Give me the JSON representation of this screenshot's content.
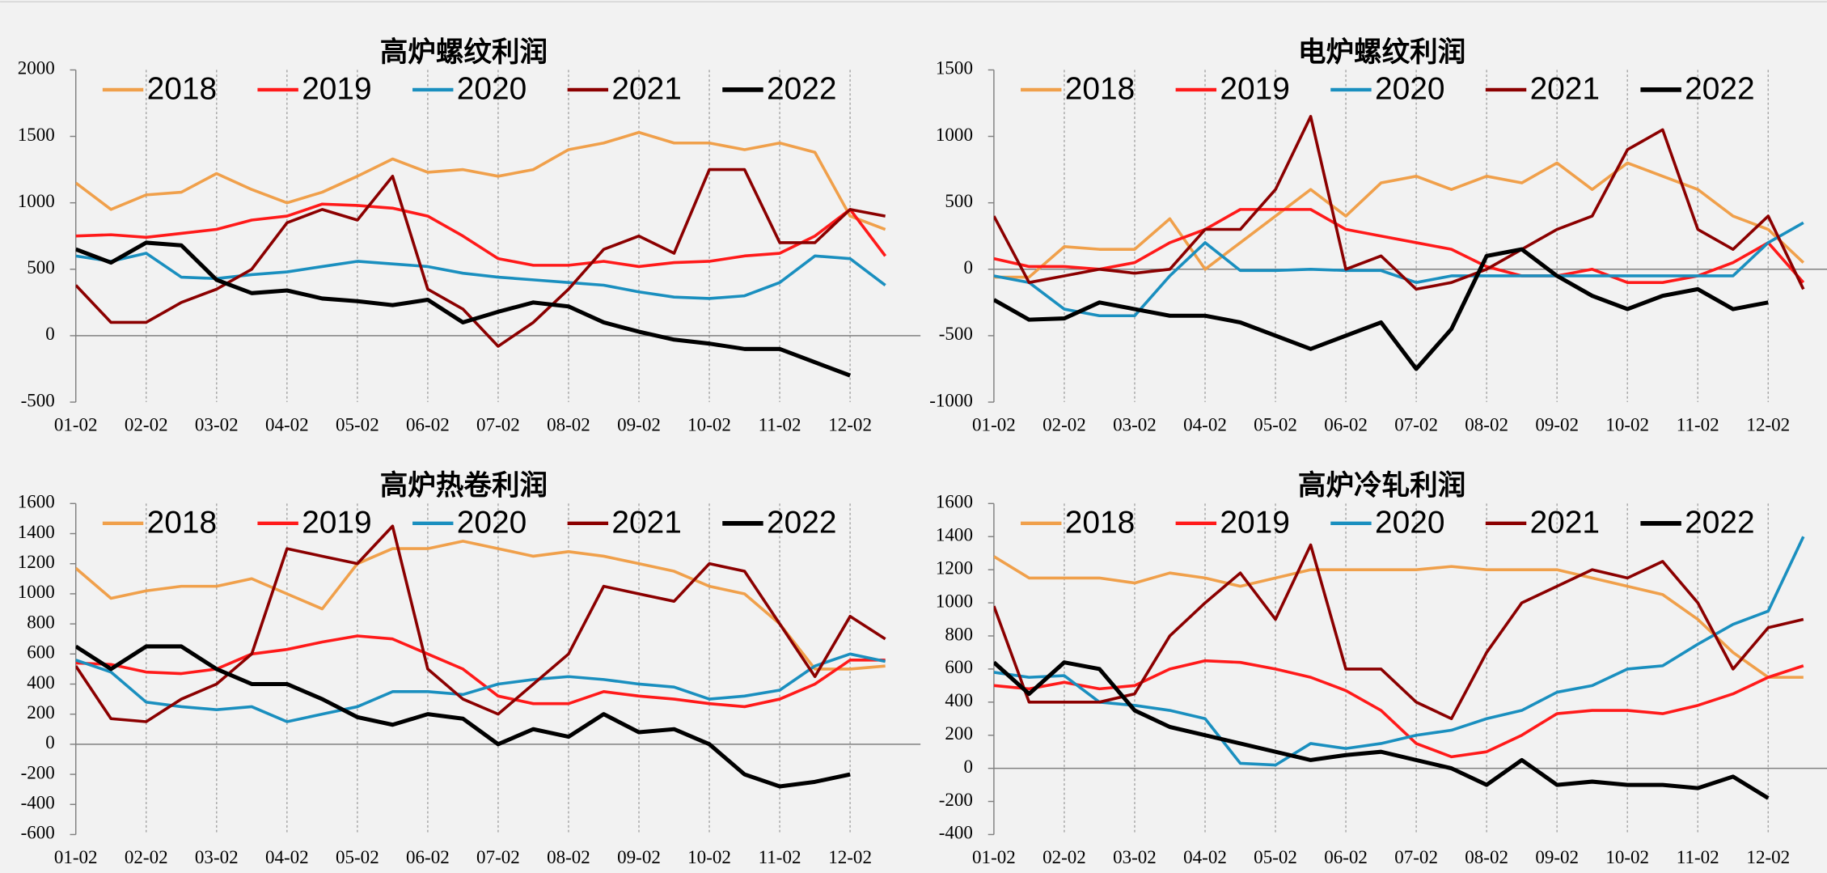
{
  "chart_data": [
    {
      "type": "line",
      "title": "高炉螺纹利润",
      "legend": "top",
      "grid": "x",
      "categories": [
        "01-02",
        null,
        "02-02",
        null,
        "03-02",
        null,
        "04-02",
        null,
        "05-02",
        null,
        "06-02",
        null,
        "07-02",
        null,
        "08-02",
        null,
        "09-02",
        null,
        "10-02",
        null,
        "11-02",
        null,
        "12-02",
        null
      ],
      "ylim": [
        -500,
        2000
      ],
      "yticks": [
        -500,
        0,
        500,
        1000,
        1500,
        2000
      ],
      "series": [
        {
          "name": "2018",
          "color": "#f0a04b",
          "values": [
            1150,
            950,
            1060,
            1080,
            1220,
            1100,
            1000,
            1080,
            1200,
            1330,
            1230,
            1250,
            1200,
            1250,
            1400,
            1450,
            1530,
            1450,
            1450,
            1400,
            1450,
            1380,
            900,
            800
          ]
        },
        {
          "name": "2019",
          "color": "#ff1a1a",
          "values": [
            750,
            760,
            740,
            770,
            800,
            870,
            900,
            990,
            980,
            960,
            900,
            750,
            580,
            530,
            530,
            560,
            520,
            550,
            560,
            600,
            620,
            750,
            950,
            600
          ]
        },
        {
          "name": "2020",
          "color": "#1a8fbf",
          "values": [
            600,
            560,
            620,
            440,
            430,
            460,
            480,
            520,
            560,
            540,
            520,
            470,
            440,
            420,
            400,
            380,
            330,
            290,
            280,
            300,
            400,
            600,
            580,
            380
          ]
        },
        {
          "name": "2021",
          "color": "#8b0000",
          "values": [
            380,
            100,
            100,
            250,
            350,
            500,
            850,
            950,
            870,
            1200,
            350,
            200,
            -80,
            100,
            350,
            650,
            750,
            620,
            1250,
            1250,
            700,
            700,
            950,
            900
          ]
        },
        {
          "name": "2022",
          "color": "#000000",
          "values": [
            650,
            550,
            700,
            680,
            420,
            320,
            340,
            280,
            260,
            230,
            270,
            100,
            180,
            250,
            220,
            100,
            30,
            -30,
            -60,
            -100,
            -100,
            -200,
            -300,
            null
          ]
        }
      ]
    },
    {
      "type": "line",
      "title": "电炉螺纹利润",
      "legend": "top",
      "grid": "x",
      "categories": [
        "01-02",
        null,
        "02-02",
        null,
        "03-02",
        null,
        "04-02",
        null,
        "05-02",
        null,
        "06-02",
        null,
        "07-02",
        null,
        "08-02",
        null,
        "09-02",
        null,
        "10-02",
        null,
        "11-02",
        null,
        "12-02",
        null
      ],
      "ylim": [
        -1000,
        1500
      ],
      "yticks": [
        -1000,
        -500,
        0,
        500,
        1000,
        1500
      ],
      "series": [
        {
          "name": "2018",
          "color": "#f0a04b",
          "values": [
            -60,
            -60,
            170,
            150,
            150,
            380,
            0,
            200,
            400,
            600,
            400,
            650,
            700,
            600,
            700,
            650,
            800,
            600,
            800,
            700,
            600,
            400,
            300,
            50
          ]
        },
        {
          "name": "2019",
          "color": "#ff1a1a",
          "values": [
            80,
            20,
            20,
            0,
            50,
            200,
            300,
            450,
            450,
            450,
            300,
            250,
            200,
            150,
            20,
            -50,
            -50,
            0,
            -100,
            -100,
            -50,
            50,
            200,
            -100
          ]
        },
        {
          "name": "2020",
          "color": "#1a8fbf",
          "values": [
            -50,
            -100,
            -300,
            -350,
            -350,
            -50,
            200,
            -10,
            -10,
            0,
            -10,
            -10,
            -100,
            -50,
            -50,
            -50,
            -50,
            -50,
            -50,
            -50,
            -50,
            -50,
            200,
            350
          ]
        },
        {
          "name": "2021",
          "color": "#8b0000",
          "values": [
            400,
            -100,
            -50,
            0,
            -30,
            0,
            300,
            300,
            600,
            1150,
            0,
            100,
            -150,
            -100,
            0,
            150,
            300,
            400,
            900,
            1050,
            300,
            150,
            400,
            -150
          ]
        },
        {
          "name": "2022",
          "color": "#000000",
          "values": [
            -230,
            -380,
            -370,
            -250,
            -300,
            -350,
            -350,
            -400,
            -500,
            -600,
            -500,
            -400,
            -750,
            -450,
            100,
            150,
            -50,
            -200,
            -300,
            -200,
            -150,
            -300,
            -250,
            null
          ]
        }
      ]
    },
    {
      "type": "line",
      "title": "高炉热卷利润",
      "legend": "top",
      "grid": "x",
      "categories": [
        "01-02",
        null,
        "02-02",
        null,
        "03-02",
        null,
        "04-02",
        null,
        "05-02",
        null,
        "06-02",
        null,
        "07-02",
        null,
        "08-02",
        null,
        "09-02",
        null,
        "10-02",
        null,
        "11-02",
        null,
        "12-02",
        null
      ],
      "ylim": [
        -600,
        1600
      ],
      "yticks": [
        -600,
        -400,
        -200,
        0,
        200,
        400,
        600,
        800,
        1000,
        1200,
        1400,
        1600
      ],
      "series": [
        {
          "name": "2018",
          "color": "#f0a04b",
          "values": [
            1170,
            970,
            1020,
            1050,
            1050,
            1100,
            1000,
            900,
            1200,
            1300,
            1300,
            1350,
            1300,
            1250,
            1280,
            1250,
            1200,
            1150,
            1050,
            1000,
            800,
            500,
            500,
            520
          ]
        },
        {
          "name": "2019",
          "color": "#ff1a1a",
          "values": [
            540,
            530,
            480,
            470,
            500,
            600,
            630,
            680,
            720,
            700,
            600,
            500,
            320,
            270,
            270,
            350,
            320,
            300,
            270,
            250,
            300,
            400,
            560,
            560
          ]
        },
        {
          "name": "2020",
          "color": "#1a8fbf",
          "values": [
            560,
            480,
            280,
            250,
            230,
            250,
            150,
            200,
            250,
            350,
            350,
            330,
            400,
            430,
            450,
            430,
            400,
            380,
            300,
            320,
            360,
            520,
            600,
            550
          ]
        },
        {
          "name": "2021",
          "color": "#8b0000",
          "values": [
            520,
            170,
            150,
            300,
            400,
            600,
            1300,
            1250,
            1200,
            1450,
            500,
            300,
            200,
            400,
            600,
            1050,
            1000,
            950,
            1200,
            1150,
            800,
            450,
            850,
            700
          ]
        },
        {
          "name": "2022",
          "color": "#000000",
          "values": [
            650,
            500,
            650,
            650,
            500,
            400,
            400,
            300,
            180,
            130,
            200,
            170,
            0,
            100,
            50,
            200,
            80,
            100,
            0,
            -200,
            -280,
            -250,
            -200,
            null
          ]
        }
      ]
    },
    {
      "type": "line",
      "title": "高炉冷轧利润",
      "legend": "top",
      "grid": "x",
      "categories": [
        "01-02",
        null,
        "02-02",
        null,
        "03-02",
        null,
        "04-02",
        null,
        "05-02",
        null,
        "06-02",
        null,
        "07-02",
        null,
        "08-02",
        null,
        "09-02",
        null,
        "10-02",
        null,
        "11-02",
        null,
        "12-02",
        null
      ],
      "ylim": [
        -400,
        1600
      ],
      "yticks": [
        -400,
        -200,
        0,
        200,
        400,
        600,
        800,
        1000,
        1200,
        1400,
        1600
      ],
      "series": [
        {
          "name": "2018",
          "color": "#f0a04b",
          "values": [
            1280,
            1150,
            1150,
            1150,
            1120,
            1180,
            1150,
            1100,
            1150,
            1200,
            1200,
            1200,
            1200,
            1220,
            1200,
            1200,
            1200,
            1150,
            1100,
            1050,
            900,
            700,
            550,
            550
          ]
        },
        {
          "name": "2019",
          "color": "#ff1a1a",
          "values": [
            500,
            480,
            520,
            480,
            500,
            600,
            650,
            640,
            600,
            550,
            470,
            350,
            150,
            70,
            100,
            200,
            330,
            350,
            350,
            330,
            380,
            450,
            550,
            620
          ]
        },
        {
          "name": "2020",
          "color": "#1a8fbf",
          "values": [
            580,
            550,
            560,
            400,
            380,
            350,
            300,
            30,
            20,
            150,
            120,
            150,
            200,
            230,
            300,
            350,
            460,
            500,
            600,
            620,
            750,
            870,
            950,
            1400
          ]
        },
        {
          "name": "2021",
          "color": "#8b0000",
          "values": [
            980,
            400,
            400,
            400,
            450,
            800,
            1000,
            1180,
            900,
            1350,
            600,
            600,
            400,
            300,
            700,
            1000,
            1100,
            1200,
            1150,
            1250,
            1000,
            600,
            850,
            900
          ]
        },
        {
          "name": "2022",
          "color": "#000000",
          "values": [
            640,
            450,
            640,
            600,
            350,
            250,
            200,
            150,
            100,
            50,
            80,
            100,
            50,
            0,
            -100,
            50,
            -100,
            -80,
            -100,
            -100,
            -120,
            -50,
            -180,
            null
          ]
        }
      ]
    }
  ]
}
